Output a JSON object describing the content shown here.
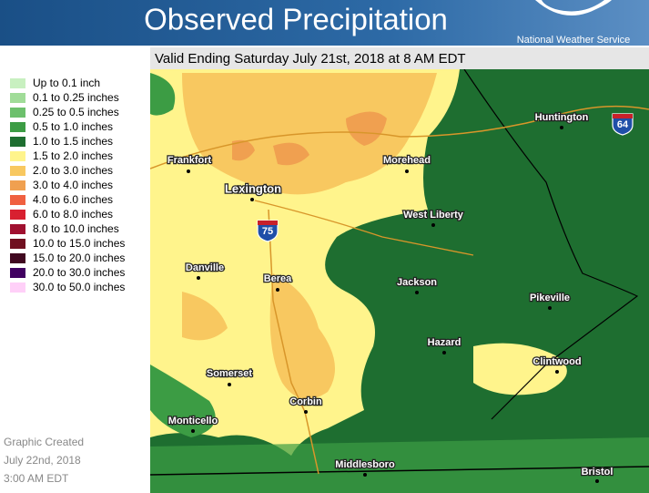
{
  "header": {
    "title": "Observed Precipitation",
    "agency": "National Weather Service"
  },
  "valid": "Valid Ending Saturday July 21st, 2018 at 8 AM EDT",
  "legend": {
    "items": [
      {
        "label": "Up to 0.1 inch",
        "color": "#c8f0c0"
      },
      {
        "label": "0.1 to 0.25 inches",
        "color": "#a0dc98"
      },
      {
        "label": "0.25 to 0.5 inches",
        "color": "#6cc06c"
      },
      {
        "label": "0.5 to 1.0 inches",
        "color": "#3c9c44"
      },
      {
        "label": "1.0 to 1.5 inches",
        "color": "#1e6e30"
      },
      {
        "label": "1.5 to 2.0 inches",
        "color": "#fff48c"
      },
      {
        "label": "2.0 to 3.0 inches",
        "color": "#f8c860"
      },
      {
        "label": "3.0 to 4.0 inches",
        "color": "#f0a050"
      },
      {
        "label": "4.0 to 6.0 inches",
        "color": "#f06040"
      },
      {
        "label": "6.0 to 8.0 inches",
        "color": "#d82030"
      },
      {
        "label": "8.0 to 10.0 inches",
        "color": "#a01030"
      },
      {
        "label": "10.0 to 15.0 inches",
        "color": "#701020"
      },
      {
        "label": "15.0 to 20.0 inches",
        "color": "#400820"
      },
      {
        "label": "20.0 to 30.0 inches",
        "color": "#400060"
      },
      {
        "label": "30.0 to 50.0 inches",
        "color": "#ffd0f8"
      }
    ]
  },
  "cities": [
    "Huntington",
    "Frankfort",
    "Morehead",
    "Lexington",
    "West Liberty",
    "Danville",
    "Berea",
    "Jackson",
    "Pikeville",
    "Hazard",
    "Clintwood",
    "Somerset",
    "Corbin",
    "Monticello",
    "Middlesboro",
    "Bristol"
  ],
  "interstates": [
    "64",
    "75"
  ],
  "footer": [
    "Graphic Created",
    "July 22nd, 2018",
    "3:00 AM EDT"
  ]
}
